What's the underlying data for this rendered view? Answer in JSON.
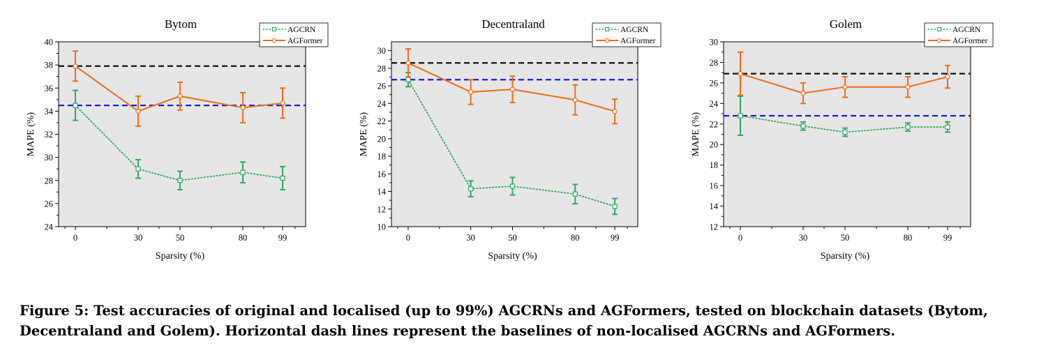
{
  "caption": {
    "line1": "Figure 5: Test accuracies of original and localised (up to 99%) AGCRNs and AGFormers, tested on blockchain datasets (Bytom,",
    "line2": "Decentraland and Golem). Horizontal dash lines represent the baselines of non-localised AGCRNs and AGFormers."
  },
  "colors": {
    "agcrn": "#2eaa63",
    "agformer": "#f36c14",
    "agcrn_baseline": "#1a1ae6",
    "agformer_baseline": "#111111"
  },
  "chart_data": [
    {
      "type": "line",
      "title": "Bytom",
      "xlabel": "Sparsity (%)",
      "ylabel": "MAPE (%)",
      "categories": [
        "0",
        "30",
        "50",
        "80",
        "99"
      ],
      "x": [
        0,
        30,
        50,
        80,
        99
      ],
      "xlim": [
        -8,
        110
      ],
      "ylim": [
        24,
        40
      ],
      "yticks": [
        24,
        26,
        28,
        30,
        32,
        34,
        36,
        38,
        40
      ],
      "grid": false,
      "legend_position": "top-right",
      "series": [
        {
          "name": "AGCRN",
          "values": [
            34.5,
            29.0,
            28.0,
            28.7,
            28.2
          ],
          "err": [
            1.3,
            0.8,
            0.8,
            0.9,
            1.0
          ],
          "style": "dotted",
          "marker": "square"
        },
        {
          "name": "AGFormer",
          "values": [
            37.9,
            34.0,
            35.3,
            34.3,
            34.7
          ],
          "err": [
            1.3,
            1.3,
            1.2,
            1.3,
            1.3
          ],
          "style": "solid",
          "marker": "circle"
        }
      ],
      "baselines": [
        {
          "series": "AGFormer",
          "value": 37.9
        },
        {
          "series": "AGCRN",
          "value": 34.5
        }
      ]
    },
    {
      "type": "line",
      "title": "Decentraland",
      "xlabel": "Sparsity (%)",
      "ylabel": "MAPE (%)",
      "categories": [
        "0",
        "30",
        "50",
        "80",
        "99"
      ],
      "x": [
        0,
        30,
        50,
        80,
        99
      ],
      "xlim": [
        -8,
        110
      ],
      "ylim": [
        10,
        31
      ],
      "yticks": [
        10,
        12,
        14,
        16,
        18,
        20,
        22,
        24,
        26,
        28,
        30
      ],
      "grid": false,
      "legend_position": "top-right",
      "series": [
        {
          "name": "AGCRN",
          "values": [
            26.7,
            14.3,
            14.6,
            13.7,
            12.3
          ],
          "err": [
            0.8,
            0.9,
            1.0,
            1.1,
            0.9
          ],
          "style": "dotted",
          "marker": "square"
        },
        {
          "name": "AGFormer",
          "values": [
            28.6,
            25.3,
            25.6,
            24.4,
            23.1
          ],
          "err": [
            1.6,
            1.4,
            1.5,
            1.7,
            1.4
          ],
          "style": "solid",
          "marker": "circle"
        }
      ],
      "baselines": [
        {
          "series": "AGFormer",
          "value": 28.6
        },
        {
          "series": "AGCRN",
          "value": 26.7
        }
      ]
    },
    {
      "type": "line",
      "title": "Golem",
      "xlabel": "Sparsity (%)",
      "ylabel": "MAPE (%)",
      "categories": [
        "0",
        "30",
        "50",
        "80",
        "99"
      ],
      "x": [
        0,
        30,
        50,
        80,
        99
      ],
      "xlim": [
        -8,
        110
      ],
      "ylim": [
        12,
        30
      ],
      "yticks": [
        12,
        14,
        16,
        18,
        20,
        22,
        24,
        26,
        28,
        30
      ],
      "grid": false,
      "legend_position": "top-right",
      "series": [
        {
          "name": "AGCRN",
          "values": [
            22.8,
            21.8,
            21.2,
            21.7,
            21.7
          ],
          "err": [
            1.9,
            0.4,
            0.4,
            0.4,
            0.5
          ],
          "style": "dotted",
          "marker": "square"
        },
        {
          "name": "AGFormer",
          "values": [
            26.9,
            25.0,
            25.6,
            25.6,
            26.6
          ],
          "err": [
            2.1,
            1.0,
            1.0,
            1.0,
            1.1
          ],
          "style": "solid",
          "marker": "circle"
        }
      ],
      "baselines": [
        {
          "series": "AGFormer",
          "value": 26.9
        },
        {
          "series": "AGCRN",
          "value": 22.8
        }
      ]
    }
  ]
}
